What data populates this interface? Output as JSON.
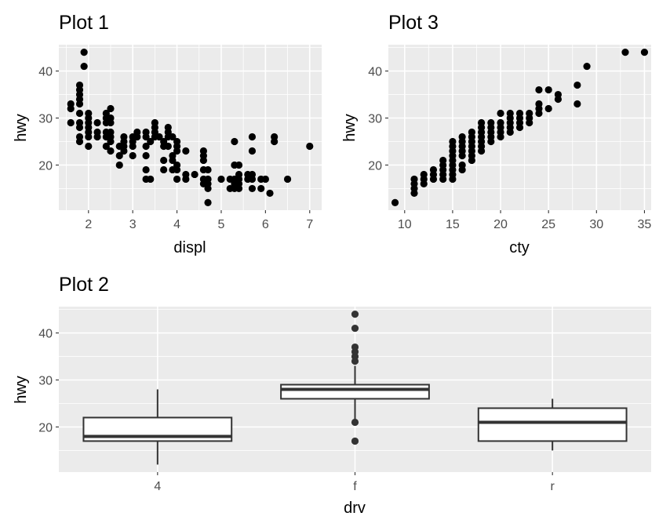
{
  "chart_data": [
    {
      "id": "plot1",
      "type": "scatter",
      "title": "Plot 1",
      "xlabel": "displ",
      "ylabel": "hwy",
      "xlim": [
        1.33,
        7.27
      ],
      "ylim": [
        10.4,
        45.6
      ],
      "xticks": [
        2,
        3,
        4,
        5,
        6,
        7
      ],
      "yticks": [
        20,
        30,
        40
      ],
      "grid": true,
      "point_color": "#000000",
      "points": [
        [
          1.6,
          33
        ],
        [
          1.6,
          32
        ],
        [
          1.6,
          29
        ],
        [
          1.8,
          29
        ],
        [
          1.8,
          26
        ],
        [
          1.8,
          25
        ],
        [
          1.8,
          28
        ],
        [
          1.8,
          31
        ],
        [
          1.8,
          33
        ],
        [
          1.8,
          34
        ],
        [
          1.8,
          35
        ],
        [
          1.8,
          36
        ],
        [
          1.8,
          37
        ],
        [
          1.9,
          44
        ],
        [
          1.9,
          41
        ],
        [
          2.0,
          31
        ],
        [
          2.0,
          30
        ],
        [
          2.0,
          29
        ],
        [
          2.0,
          28
        ],
        [
          2.0,
          27
        ],
        [
          2.0,
          26
        ],
        [
          2.0,
          24
        ],
        [
          2.2,
          29
        ],
        [
          2.2,
          27
        ],
        [
          2.2,
          26
        ],
        [
          2.4,
          31
        ],
        [
          2.4,
          30
        ],
        [
          2.4,
          29
        ],
        [
          2.4,
          27
        ],
        [
          2.4,
          26
        ],
        [
          2.4,
          24
        ],
        [
          2.5,
          32
        ],
        [
          2.5,
          30
        ],
        [
          2.5,
          29
        ],
        [
          2.5,
          27
        ],
        [
          2.5,
          26
        ],
        [
          2.5,
          25
        ],
        [
          2.5,
          23
        ],
        [
          2.7,
          24
        ],
        [
          2.7,
          22
        ],
        [
          2.7,
          20
        ],
        [
          2.8,
          26
        ],
        [
          2.8,
          25
        ],
        [
          2.8,
          24
        ],
        [
          2.8,
          23
        ],
        [
          3.0,
          26
        ],
        [
          3.0,
          25
        ],
        [
          3.0,
          24
        ],
        [
          3.0,
          22
        ],
        [
          3.1,
          27
        ],
        [
          3.1,
          26
        ],
        [
          3.3,
          27
        ],
        [
          3.3,
          26
        ],
        [
          3.3,
          24
        ],
        [
          3.3,
          22
        ],
        [
          3.3,
          19
        ],
        [
          3.3,
          17
        ],
        [
          3.4,
          25
        ],
        [
          3.4,
          17
        ],
        [
          3.5,
          29
        ],
        [
          3.5,
          28
        ],
        [
          3.5,
          27
        ],
        [
          3.5,
          26
        ],
        [
          3.6,
          26
        ],
        [
          3.7,
          25
        ],
        [
          3.7,
          24
        ],
        [
          3.7,
          21
        ],
        [
          3.7,
          19
        ],
        [
          3.8,
          28
        ],
        [
          3.8,
          27
        ],
        [
          3.8,
          26
        ],
        [
          3.8,
          24
        ],
        [
          3.9,
          26
        ],
        [
          3.9,
          22
        ],
        [
          3.9,
          21
        ],
        [
          3.9,
          19
        ],
        [
          4.0,
          25
        ],
        [
          4.0,
          24
        ],
        [
          4.0,
          23
        ],
        [
          4.0,
          20
        ],
        [
          4.0,
          19
        ],
        [
          4.0,
          17
        ],
        [
          4.2,
          23
        ],
        [
          4.2,
          18
        ],
        [
          4.2,
          17
        ],
        [
          4.4,
          18
        ],
        [
          4.6,
          23
        ],
        [
          4.6,
          22
        ],
        [
          4.6,
          21
        ],
        [
          4.6,
          19
        ],
        [
          4.6,
          17
        ],
        [
          4.6,
          16
        ],
        [
          4.7,
          19
        ],
        [
          4.7,
          17
        ],
        [
          4.7,
          16
        ],
        [
          4.7,
          15
        ],
        [
          4.7,
          12
        ],
        [
          5.0,
          17
        ],
        [
          5.2,
          17
        ],
        [
          5.2,
          15
        ],
        [
          5.3,
          25
        ],
        [
          5.3,
          20
        ],
        [
          5.3,
          17
        ],
        [
          5.3,
          16
        ],
        [
          5.3,
          15
        ],
        [
          5.4,
          20
        ],
        [
          5.4,
          18
        ],
        [
          5.4,
          17
        ],
        [
          5.4,
          16
        ],
        [
          5.4,
          15
        ],
        [
          5.6,
          18
        ],
        [
          5.6,
          17
        ],
        [
          5.7,
          26
        ],
        [
          5.7,
          23
        ],
        [
          5.7,
          18
        ],
        [
          5.7,
          17
        ],
        [
          5.7,
          15
        ],
        [
          5.9,
          17
        ],
        [
          5.9,
          15
        ],
        [
          6.0,
          17
        ],
        [
          6.1,
          14
        ],
        [
          6.2,
          26
        ],
        [
          6.2,
          25
        ],
        [
          6.5,
          17
        ],
        [
          7.0,
          24
        ]
      ]
    },
    {
      "id": "plot3",
      "type": "scatter",
      "title": "Plot 3",
      "xlabel": "cty",
      "ylabel": "hwy",
      "xlim": [
        8.3,
        35.7
      ],
      "ylim": [
        10.4,
        45.6
      ],
      "xticks": [
        10,
        15,
        20,
        25,
        30,
        35
      ],
      "yticks": [
        20,
        30,
        40
      ],
      "grid": true,
      "point_color": "#000000",
      "points": [
        [
          9,
          12
        ],
        [
          11,
          14
        ],
        [
          11,
          15
        ],
        [
          11,
          16
        ],
        [
          11,
          17
        ],
        [
          12,
          16
        ],
        [
          12,
          17
        ],
        [
          12,
          18
        ],
        [
          13,
          17
        ],
        [
          13,
          18
        ],
        [
          13,
          19
        ],
        [
          14,
          17
        ],
        [
          14,
          18
        ],
        [
          14,
          19
        ],
        [
          14,
          20
        ],
        [
          14,
          21
        ],
        [
          15,
          17
        ],
        [
          15,
          18
        ],
        [
          15,
          19
        ],
        [
          15,
          20
        ],
        [
          15,
          21
        ],
        [
          15,
          22
        ],
        [
          15,
          23
        ],
        [
          15,
          24
        ],
        [
          15,
          25
        ],
        [
          16,
          19
        ],
        [
          16,
          20
        ],
        [
          16,
          22
        ],
        [
          16,
          23
        ],
        [
          16,
          24
        ],
        [
          16,
          25
        ],
        [
          16,
          26
        ],
        [
          17,
          21
        ],
        [
          17,
          22
        ],
        [
          17,
          23
        ],
        [
          17,
          24
        ],
        [
          17,
          25
        ],
        [
          17,
          26
        ],
        [
          17,
          27
        ],
        [
          18,
          23
        ],
        [
          18,
          24
        ],
        [
          18,
          25
        ],
        [
          18,
          26
        ],
        [
          18,
          27
        ],
        [
          18,
          28
        ],
        [
          18,
          29
        ],
        [
          19,
          25
        ],
        [
          19,
          26
        ],
        [
          19,
          27
        ],
        [
          19,
          28
        ],
        [
          19,
          29
        ],
        [
          20,
          26
        ],
        [
          20,
          27
        ],
        [
          20,
          28
        ],
        [
          20,
          29
        ],
        [
          20,
          31
        ],
        [
          21,
          27
        ],
        [
          21,
          28
        ],
        [
          21,
          29
        ],
        [
          21,
          30
        ],
        [
          21,
          31
        ],
        [
          22,
          28
        ],
        [
          22,
          29
        ],
        [
          22,
          30
        ],
        [
          22,
          31
        ],
        [
          23,
          29
        ],
        [
          23,
          30
        ],
        [
          23,
          31
        ],
        [
          24,
          31
        ],
        [
          24,
          32
        ],
        [
          24,
          33
        ],
        [
          24,
          36
        ],
        [
          25,
          32
        ],
        [
          25,
          36
        ],
        [
          26,
          34
        ],
        [
          26,
          35
        ],
        [
          28,
          33
        ],
        [
          28,
          37
        ],
        [
          29,
          41
        ],
        [
          33,
          44
        ],
        [
          35,
          44
        ]
      ]
    },
    {
      "id": "plot2",
      "type": "boxplot",
      "title": "Plot 2",
      "xlabel": "drv",
      "ylabel": "hwy",
      "ylim": [
        10.4,
        45.6
      ],
      "yticks": [
        20,
        30,
        40
      ],
      "grid": true,
      "categories": [
        "4",
        "f",
        "r"
      ],
      "boxes": [
        {
          "min": 12,
          "q1": 17,
          "median": 18,
          "q3": 22,
          "max": 28,
          "outliers": []
        },
        {
          "min": 21,
          "q1": 26,
          "median": 28,
          "q3": 29,
          "max": 33,
          "outliers": [
            17,
            21,
            34,
            35,
            36,
            37,
            41,
            44
          ]
        },
        {
          "min": 15,
          "q1": 17,
          "median": 21,
          "q3": 24,
          "max": 26,
          "outliers": []
        }
      ],
      "box_fill": "#ffffff",
      "box_stroke": "#333333",
      "outlier_color": "#333333"
    }
  ]
}
